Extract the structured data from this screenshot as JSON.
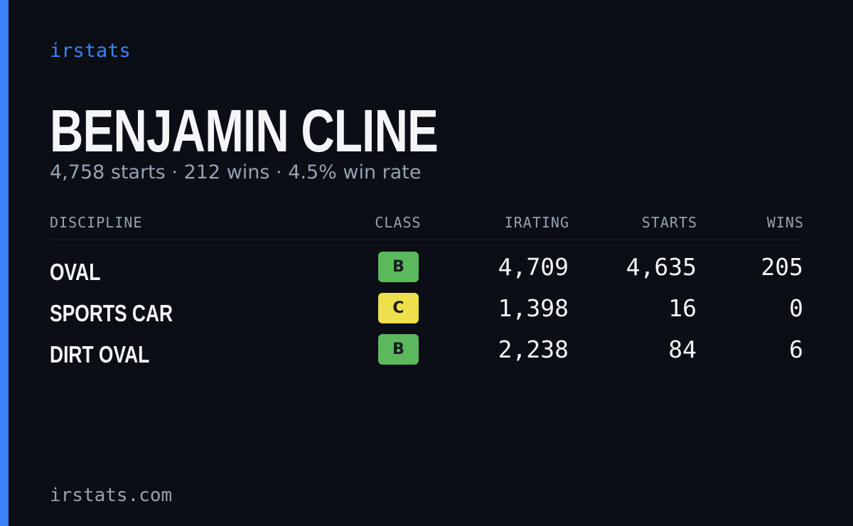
{
  "brand": "irstats",
  "driver": {
    "name": "BENJAMIN CLINE",
    "summary": "4,758 starts · 212 wins · 4.5% win rate"
  },
  "table": {
    "headers": [
      "DISCIPLINE",
      "CLASS",
      "IRATING",
      "STARTS",
      "WINS"
    ],
    "rows": [
      {
        "discipline": "OVAL",
        "class": "B",
        "class_color": "#5cb85c",
        "irating": "4,709",
        "starts": "4,635",
        "wins": "205"
      },
      {
        "discipline": "SPORTS CAR",
        "class": "C",
        "class_color": "#ede04a",
        "irating": "1,398",
        "starts": "16",
        "wins": "0"
      },
      {
        "discipline": "DIRT OVAL",
        "class": "B",
        "class_color": "#5cb85c",
        "irating": "2,238",
        "starts": "84",
        "wins": "6"
      }
    ]
  },
  "footer": "irstats.com"
}
